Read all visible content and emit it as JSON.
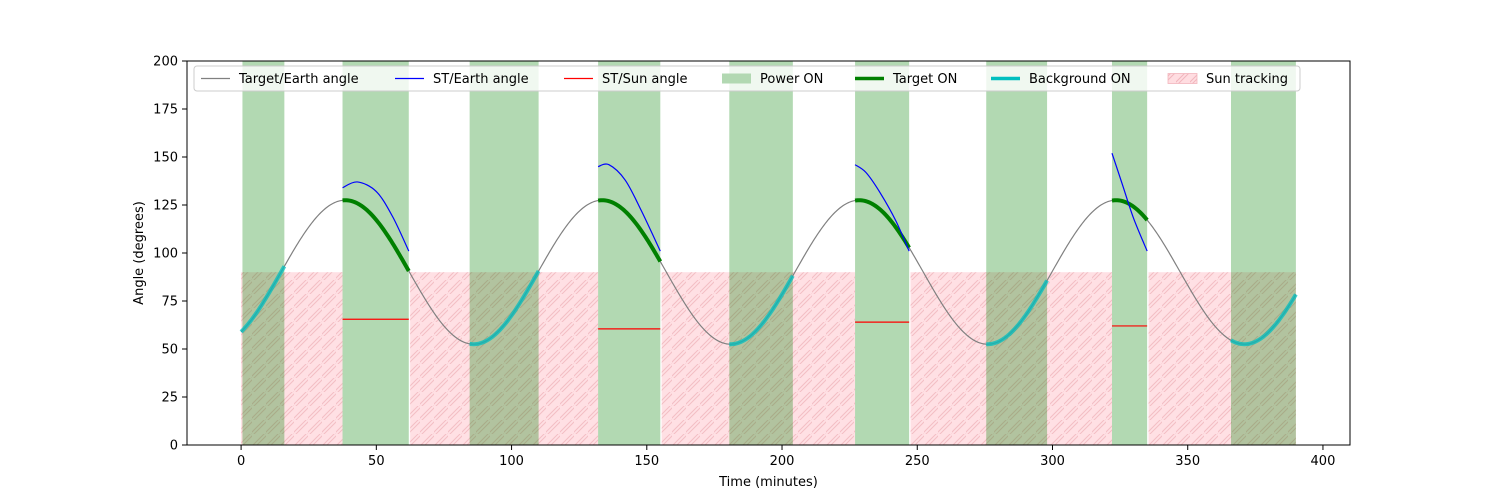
{
  "chart_data": {
    "type": "line",
    "title": "",
    "xlabel": "Time (minutes)",
    "ylabel": "Angle (degrees)",
    "xlim": [
      -20,
      410
    ],
    "ylim": [
      0,
      200
    ],
    "xticks": [
      0,
      50,
      100,
      150,
      200,
      250,
      300,
      350,
      400
    ],
    "yticks": [
      0,
      25,
      50,
      75,
      100,
      125,
      150,
      175,
      200
    ],
    "grid": false,
    "legend_position": "top",
    "legend": [
      {
        "label": "Target/Earth angle",
        "kind": "line",
        "color": "#808080"
      },
      {
        "label": "ST/Earth angle",
        "kind": "line",
        "color": "#0000ff"
      },
      {
        "label": "ST/Sun angle",
        "kind": "line",
        "color": "#ff0000"
      },
      {
        "label": "Power ON",
        "kind": "patch",
        "color": "#b2d8b2"
      },
      {
        "label": "Target ON",
        "kind": "thickline",
        "color": "#008000"
      },
      {
        "label": "Background ON",
        "kind": "thickline",
        "color": "#00bfbf"
      },
      {
        "label": "Sun tracking",
        "kind": "hatch",
        "color": "#ffdde1"
      }
    ],
    "target_earth_curve": {
      "description_period": 95,
      "x_range": [
        0,
        390
      ],
      "mean": 90,
      "amplitude": 37.5,
      "phase_min_x": 86
    },
    "power_on_intervals": [
      [
        0.5,
        16
      ],
      [
        37.5,
        62
      ],
      [
        84.5,
        110
      ],
      [
        132,
        155
      ],
      [
        180.5,
        204
      ],
      [
        227,
        247
      ],
      [
        275.5,
        298
      ],
      [
        322,
        335
      ],
      [
        366,
        390
      ]
    ],
    "sun_tracking_intervals": [
      [
        0,
        37.5
      ],
      [
        62.5,
        132
      ],
      [
        155.5,
        227
      ],
      [
        247.5,
        322
      ],
      [
        335.5,
        390
      ]
    ],
    "sun_tracking_level": 90,
    "target_on_intervals": [
      [
        37.5,
        62
      ],
      [
        132,
        155
      ],
      [
        227,
        247
      ],
      [
        322,
        335
      ]
    ],
    "background_on_intervals": [
      [
        0,
        16
      ],
      [
        84.5,
        110
      ],
      [
        180.5,
        204
      ],
      [
        275.5,
        298
      ],
      [
        366,
        390
      ]
    ],
    "st_earth_segments": [
      {
        "x": [
          37.5,
          43,
          50,
          56,
          62
        ],
        "y": [
          134,
          137,
          132,
          119,
          101
        ]
      },
      {
        "x": [
          132,
          136,
          142,
          148,
          155
        ],
        "y": [
          145,
          146,
          138,
          122,
          101
        ]
      },
      {
        "x": [
          227,
          231,
          236,
          242,
          247
        ],
        "y": [
          146,
          142,
          132,
          117,
          101
        ]
      },
      {
        "x": [
          322,
          326,
          330,
          335
        ],
        "y": [
          152,
          135,
          118,
          101
        ]
      }
    ],
    "st_sun_segments": [
      {
        "x": [
          37.5,
          62
        ],
        "y": [
          65.5,
          65.5
        ]
      },
      {
        "x": [
          132,
          155
        ],
        "y": [
          60.5,
          60.5
        ]
      },
      {
        "x": [
          227,
          247
        ],
        "y": [
          64,
          64
        ]
      },
      {
        "x": [
          322,
          335
        ],
        "y": [
          62,
          62
        ]
      }
    ]
  }
}
